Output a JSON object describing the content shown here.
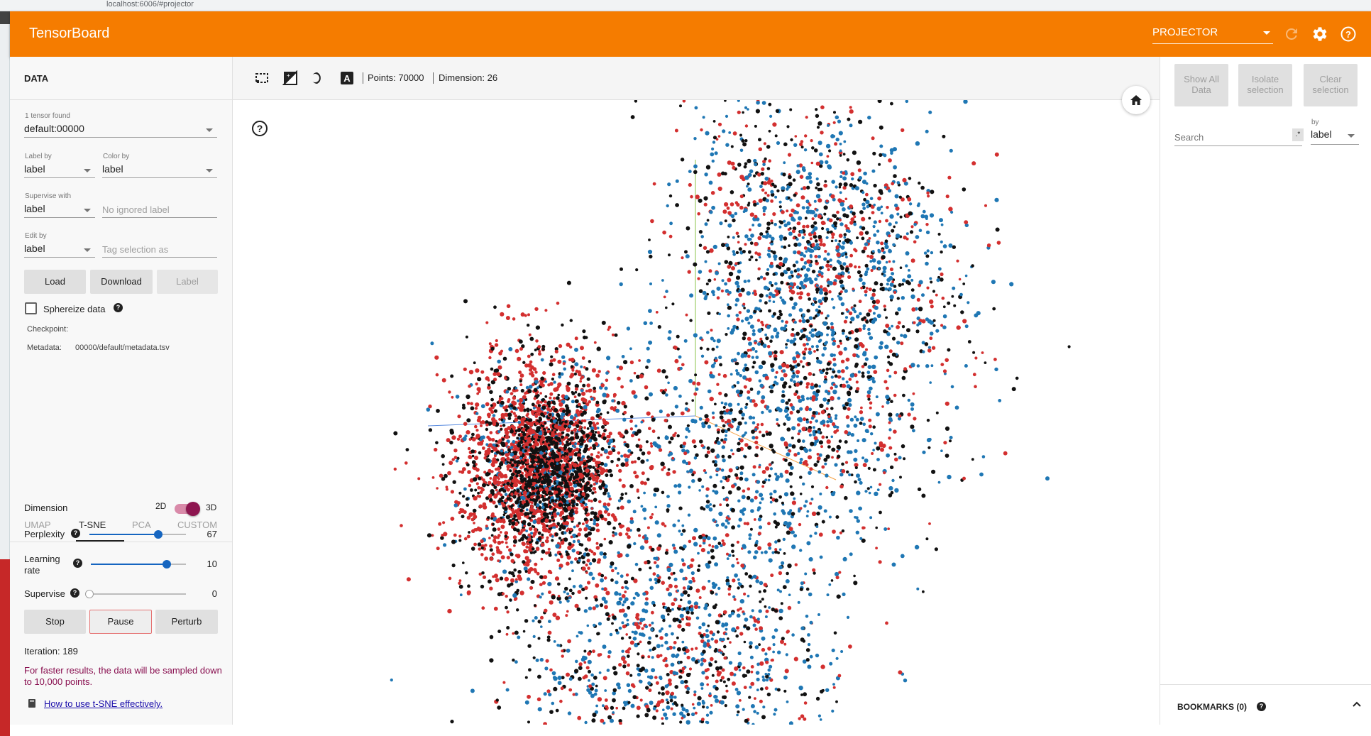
{
  "browser": {
    "url": "localhost:6006/#projector"
  },
  "header": {
    "brand": "TensorBoard",
    "plugin": "PROJECTOR"
  },
  "data_panel": {
    "title": "DATA",
    "tensor_count_label": "1 tensor found",
    "tensor": "default:00000",
    "label_by_label": "Label by",
    "label_by": "label",
    "color_by_label": "Color by",
    "color_by": "label",
    "supervise_with_label": "Supervise with",
    "supervise_with": "label",
    "ignored_label_placeholder": "No ignored label",
    "edit_by_label": "Edit by",
    "edit_by": "label",
    "tag_placeholder": "Tag selection as",
    "load_label": "Load",
    "download_label": "Download",
    "label_button": "Label",
    "sphereize_label": "Sphereize data",
    "checkpoint_label": "Checkpoint:",
    "metadata_label": "Metadata:",
    "metadata_value": "00000/default/metadata.tsv"
  },
  "tabs": [
    "UMAP",
    "T-SNE",
    "PCA",
    "CUSTOM"
  ],
  "tsne": {
    "dimension_label": "Dimension",
    "dim_2d": "2D",
    "dim_3d": "3D",
    "perplexity_label": "Perplexity",
    "perplexity_value": "67",
    "perplexity_level": 0.71,
    "learning_rate_label_1": "Learning",
    "learning_rate_label_2": "rate",
    "learning_rate_value": "10",
    "learning_rate_level": 0.8,
    "supervise_label": "Supervise",
    "supervise_value": "0",
    "supervise_level": 0,
    "stop_label": "Stop",
    "pause_label": "Pause",
    "perturb_label": "Perturb",
    "iteration_text": "Iteration: 189",
    "warning_text": "For faster results, the data will be sampled down to 10,000 points.",
    "howto_link": "How to use t-SNE effectively."
  },
  "toolbar": {
    "points_text": "Points: 70000",
    "dimension_text": "Dimension: 26"
  },
  "right_panel": {
    "show_all_1": "Show All",
    "show_all_2": "Data",
    "isolate_1": "Isolate",
    "isolate_2": "selection",
    "clear_1": "Clear",
    "clear_2": "selection",
    "search_placeholder": "Search",
    "regex_label": ".*",
    "by_label": "by",
    "by_value": "label",
    "bookmarks_label": "BOOKMARKS (0)"
  },
  "colors": {
    "header": "#f57c00",
    "point_red": "#d32f2f",
    "point_blue": "#1f77b4",
    "point_black": "#111111",
    "accent_toggle": "#8e1650"
  }
}
